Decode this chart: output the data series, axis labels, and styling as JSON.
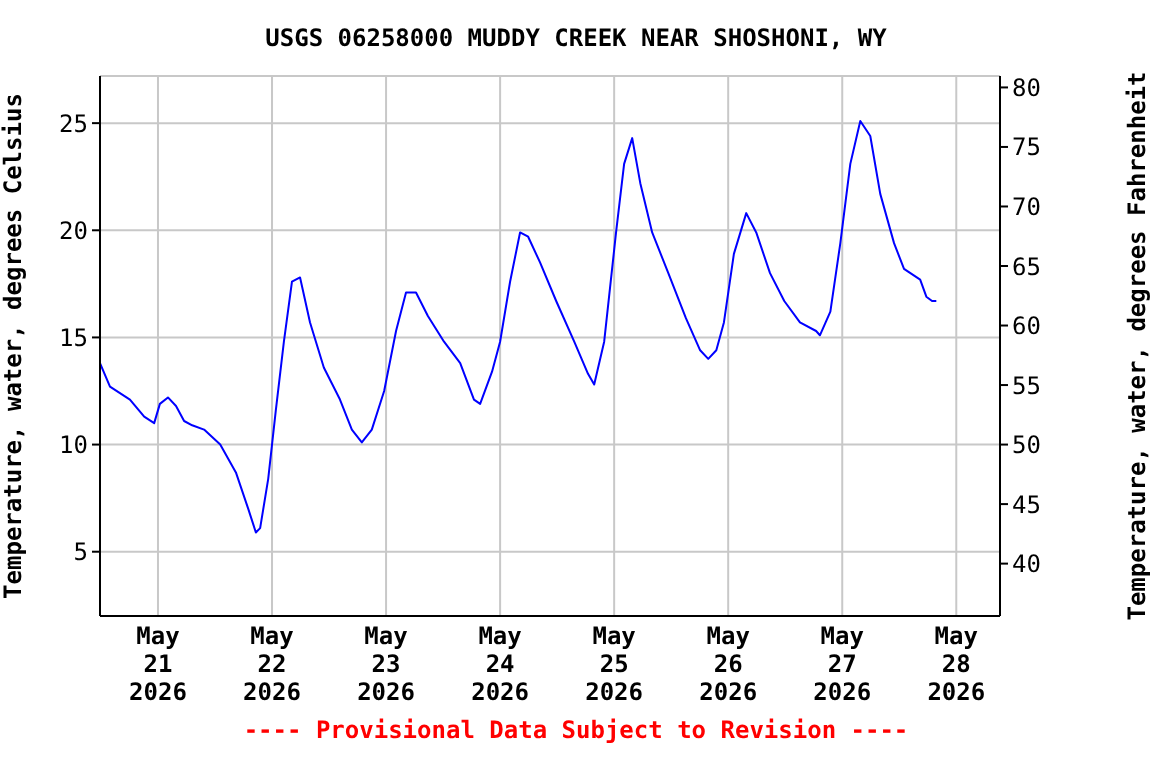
{
  "chart_data": {
    "type": "line",
    "title": "USGS 06258000 MUDDY CREEK NEAR SHOSHONI, WY",
    "ylabel": "Temperature, water, degrees Celsius",
    "y2label": "Temperature, water, degrees Fahrenheit",
    "x": [
      "2026-05-20T11:48",
      "2026-05-20T13:54",
      "2026-05-20T18:06",
      "2026-05-20T21:06",
      "2026-05-20T23:12",
      "2026-05-21T00:24",
      "2026-05-21T02:06",
      "2026-05-21T03:48",
      "2026-05-21T05:30",
      "2026-05-21T07:12",
      "2026-05-21T09:42",
      "2026-05-21T13:06",
      "2026-05-21T16:24",
      "2026-05-21T19:00",
      "2026-05-21T20:36",
      "2026-05-21T21:30",
      "2026-05-21T23:12",
      "2026-05-22T00:48",
      "2026-05-22T02:30",
      "2026-05-22T04:12",
      "2026-05-22T05:54",
      "2026-05-22T08:00",
      "2026-05-22T10:54",
      "2026-05-22T14:18",
      "2026-05-22T16:48",
      "2026-05-22T18:54",
      "2026-05-22T21:00",
      "2026-05-22T23:36",
      "2026-05-23T02:06",
      "2026-05-23T04:12",
      "2026-05-23T06:18",
      "2026-05-23T08:48",
      "2026-05-23T12:12",
      "2026-05-23T15:36",
      "2026-05-23T18:30",
      "2026-05-23T19:48",
      "2026-05-23T22:18",
      "2026-05-24T00:00",
      "2026-05-24T02:06",
      "2026-05-24T04:12",
      "2026-05-24T05:54",
      "2026-05-24T08:24",
      "2026-05-24T11:48",
      "2026-05-24T15:36",
      "2026-05-24T18:30",
      "2026-05-24T19:48",
      "2026-05-24T21:54",
      "2026-05-25T00:24",
      "2026-05-25T02:06",
      "2026-05-25T03:48",
      "2026-05-25T05:30",
      "2026-05-25T08:00",
      "2026-05-25T11:24",
      "2026-05-25T15:06",
      "2026-05-25T18:06",
      "2026-05-25T19:48",
      "2026-05-25T21:30",
      "2026-05-25T23:06",
      "2026-05-26T01:12",
      "2026-05-26T03:48",
      "2026-05-26T05:54",
      "2026-05-26T08:48",
      "2026-05-26T11:48",
      "2026-05-26T15:06",
      "2026-05-26T18:30",
      "2026-05-26T19:18",
      "2026-05-26T21:30",
      "2026-05-26T23:36",
      "2026-05-27T01:42",
      "2026-05-27T03:48",
      "2026-05-27T05:54",
      "2026-05-27T08:00",
      "2026-05-27T10:54",
      "2026-05-27T13:00",
      "2026-05-27T16:24",
      "2026-05-27T17:42",
      "2026-05-27T18:54",
      "2026-05-27T19:48"
    ],
    "series": [
      {
        "color": "#0000ff",
        "values": [
          13.8,
          12.7,
          12.1,
          11.3,
          11.0,
          11.9,
          12.2,
          11.8,
          11.1,
          10.9,
          10.7,
          10.0,
          8.7,
          7.0,
          5.9,
          6.1,
          8.4,
          11.6,
          14.8,
          17.6,
          17.8,
          15.7,
          13.6,
          12.1,
          10.7,
          10.1,
          10.7,
          12.5,
          15.3,
          17.1,
          17.1,
          16.0,
          14.8,
          13.8,
          12.1,
          11.9,
          13.4,
          14.8,
          17.6,
          19.9,
          19.7,
          18.5,
          16.7,
          14.8,
          13.3,
          12.8,
          14.8,
          19.9,
          23.1,
          24.3,
          22.2,
          19.9,
          18.0,
          15.9,
          14.4,
          14.0,
          14.4,
          15.7,
          18.9,
          20.8,
          19.9,
          18.0,
          16.7,
          15.7,
          15.3,
          15.1,
          16.2,
          19.4,
          23.1,
          25.1,
          24.4,
          21.7,
          19.4,
          18.2,
          17.7,
          16.9,
          16.7,
          16.7
        ]
      }
    ],
    "xlim": [
      "2026-05-20T11:48",
      "2026-05-28T09:12"
    ],
    "xticks": [
      {
        "value": "2026-05-21",
        "label": "May\n21\n2026"
      },
      {
        "value": "2026-05-22",
        "label": "May\n22\n2026"
      },
      {
        "value": "2026-05-23",
        "label": "May\n23\n2026"
      },
      {
        "value": "2026-05-24",
        "label": "May\n24\n2026"
      },
      {
        "value": "2026-05-25",
        "label": "May\n25\n2026"
      },
      {
        "value": "2026-05-26",
        "label": "May\n26\n2026"
      },
      {
        "value": "2026-05-27",
        "label": "May\n27\n2026"
      },
      {
        "value": "2026-05-28",
        "label": "May\n28\n2026"
      }
    ],
    "ylim": [
      2,
      27.2
    ],
    "yticks": [
      5,
      10,
      15,
      20,
      25
    ],
    "y2lim": [
      35.6,
      80.96
    ],
    "y2ticks": [
      40,
      45,
      50,
      55,
      60,
      65,
      70,
      75,
      80
    ],
    "grid": true,
    "marker": "none",
    "line_style": "solid",
    "legend": false,
    "annotations": [
      "---- Provisional Data Subject to Revision ----"
    ]
  }
}
